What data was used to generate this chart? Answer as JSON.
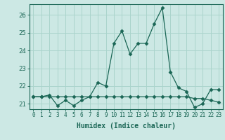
{
  "xlabel": "Humidex (Indice chaleur)",
  "ylabel": "",
  "background_color": "#cce8e4",
  "grid_color": "#aad4cc",
  "line_color": "#1a6655",
  "ylim": [
    20.7,
    26.6
  ],
  "xlim": [
    -0.5,
    23.5
  ],
  "yticks": [
    21,
    22,
    23,
    24,
    25,
    26
  ],
  "xticks": [
    0,
    1,
    2,
    3,
    4,
    5,
    6,
    7,
    8,
    9,
    10,
    11,
    12,
    13,
    14,
    15,
    16,
    17,
    18,
    19,
    20,
    21,
    22,
    23
  ],
  "series1": [
    21.4,
    21.4,
    21.4,
    21.4,
    21.4,
    21.4,
    21.4,
    21.4,
    21.4,
    21.4,
    21.4,
    21.4,
    21.4,
    21.4,
    21.4,
    21.4,
    21.4,
    21.4,
    21.4,
    21.4,
    21.3,
    21.3,
    21.2,
    21.1
  ],
  "series2": [
    21.4,
    21.4,
    21.5,
    20.9,
    21.2,
    20.9,
    21.2,
    21.4,
    22.2,
    22.0,
    24.4,
    25.1,
    23.8,
    24.4,
    24.4,
    25.5,
    26.4,
    22.8,
    21.9,
    21.7,
    20.8,
    21.0,
    21.8,
    21.8
  ],
  "series3_x": [
    8,
    9
  ],
  "series3_y": [
    22.2,
    22.0
  ],
  "figsize": [
    3.2,
    2.0
  ],
  "dpi": 100
}
